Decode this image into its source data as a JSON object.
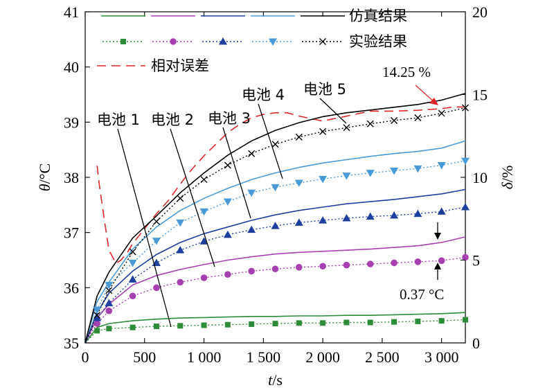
{
  "chart_data": {
    "type": "line",
    "xlabel_var": "t",
    "xlabel_unit": "/s",
    "ylabel_var": "θ",
    "ylabel_unit": "/°C",
    "y2label_var": "δ",
    "y2label_unit": "/%",
    "xlim": [
      0,
      3200
    ],
    "ylim": [
      35,
      41
    ],
    "y2lim": [
      0,
      20
    ],
    "x_ticks": [
      0,
      500,
      1000,
      1500,
      2000,
      2500,
      3000
    ],
    "x_tick_labels": [
      "0",
      "500",
      "1 000",
      "1 500",
      "2 000",
      "2 500",
      "3 000"
    ],
    "y_ticks": [
      35,
      36,
      37,
      38,
      39,
      40,
      41
    ],
    "y_tick_labels": [
      "35",
      "36",
      "37",
      "38",
      "39",
      "40",
      "41"
    ],
    "y2_ticks": [
      0,
      5,
      10,
      15,
      20
    ],
    "y2_tick_labels": [
      "0",
      "5",
      "10",
      "15",
      "20"
    ],
    "grid": false,
    "legend": {
      "position": "top",
      "sim_label": "仿真结果",
      "exp_label": "实验结果",
      "err_label": "相对误差"
    },
    "colors": [
      "#2e8b3a",
      "#a63fb0",
      "#1f3f9e",
      "#4b9ad8",
      "#000000"
    ],
    "error_color": "#e0262b",
    "series": [
      {
        "name": "电池 1",
        "sim": {
          "x": [
            0,
            100,
            200,
            400,
            600,
            800,
            1000,
            1200,
            1400,
            1600,
            1800,
            2000,
            2200,
            2400,
            2600,
            2800,
            3000,
            3200
          ],
          "y": [
            35.0,
            35.28,
            35.35,
            35.4,
            35.43,
            35.45,
            35.46,
            35.47,
            35.48,
            35.48,
            35.49,
            35.49,
            35.5,
            35.5,
            35.51,
            35.52,
            35.53,
            35.55
          ]
        },
        "exp": {
          "x": [
            0,
            100,
            200,
            400,
            600,
            800,
            1000,
            1200,
            1400,
            1600,
            1800,
            2000,
            2200,
            2400,
            2600,
            2800,
            3000,
            3200
          ],
          "y": [
            35.0,
            35.22,
            35.26,
            35.28,
            35.3,
            35.31,
            35.32,
            35.33,
            35.34,
            35.35,
            35.36,
            35.36,
            35.37,
            35.37,
            35.38,
            35.39,
            35.4,
            35.42
          ]
        }
      },
      {
        "name": "电池 2",
        "sim": {
          "x": [
            0,
            100,
            200,
            400,
            600,
            800,
            1000,
            1200,
            1400,
            1600,
            1800,
            2000,
            2200,
            2400,
            2600,
            2800,
            3000,
            3200
          ],
          "y": [
            35.0,
            35.45,
            35.7,
            36.05,
            36.22,
            36.33,
            36.42,
            36.5,
            36.56,
            36.61,
            36.64,
            36.66,
            36.68,
            36.7,
            36.73,
            36.76,
            36.82,
            36.92
          ]
        },
        "exp": {
          "x": [
            0,
            100,
            200,
            400,
            600,
            800,
            1000,
            1200,
            1400,
            1600,
            1800,
            2000,
            2200,
            2400,
            2600,
            2800,
            3000,
            3200
          ],
          "y": [
            35.0,
            35.35,
            35.58,
            35.85,
            36.0,
            36.1,
            36.18,
            36.24,
            36.3,
            36.34,
            36.37,
            36.39,
            36.41,
            36.43,
            36.45,
            36.47,
            36.49,
            36.55
          ]
        }
      },
      {
        "name": "电池 3",
        "sim": {
          "x": [
            0,
            100,
            200,
            400,
            600,
            800,
            1000,
            1200,
            1400,
            1600,
            1800,
            2000,
            2200,
            2400,
            2600,
            2800,
            3000,
            3200
          ],
          "y": [
            35.0,
            35.55,
            35.9,
            36.3,
            36.6,
            36.82,
            36.98,
            37.1,
            37.22,
            37.32,
            37.4,
            37.46,
            37.52,
            37.56,
            37.6,
            37.65,
            37.7,
            37.78
          ]
        },
        "exp": {
          "x": [
            0,
            100,
            200,
            400,
            600,
            800,
            1000,
            1200,
            1400,
            1600,
            1800,
            2000,
            2200,
            2400,
            2600,
            2800,
            3000,
            3200
          ],
          "y": [
            35.0,
            35.45,
            35.72,
            36.15,
            36.45,
            36.68,
            36.84,
            36.96,
            37.05,
            37.12,
            37.18,
            37.22,
            37.26,
            37.29,
            37.31,
            37.34,
            37.38,
            37.46
          ]
        }
      },
      {
        "name": "电池 4",
        "sim": {
          "x": [
            0,
            100,
            200,
            400,
            600,
            800,
            1000,
            1200,
            1400,
            1600,
            1800,
            2000,
            2200,
            2400,
            2600,
            2800,
            3000,
            3200
          ],
          "y": [
            35.0,
            35.75,
            36.1,
            36.7,
            37.1,
            37.4,
            37.62,
            37.8,
            37.96,
            38.08,
            38.18,
            38.26,
            38.32,
            38.38,
            38.43,
            38.47,
            38.53,
            38.66
          ]
        },
        "exp": {
          "x": [
            0,
            100,
            200,
            400,
            600,
            800,
            1000,
            1200,
            1400,
            1600,
            1800,
            2000,
            2200,
            2400,
            2600,
            2800,
            3000,
            3200
          ],
          "y": [
            35.0,
            35.6,
            36.05,
            36.45,
            36.85,
            37.18,
            37.38,
            37.56,
            37.72,
            37.82,
            37.9,
            37.97,
            38.03,
            38.08,
            38.12,
            38.16,
            38.22,
            38.3
          ]
        }
      },
      {
        "name": "电池 5",
        "sim": {
          "x": [
            0,
            100,
            200,
            400,
            600,
            800,
            1000,
            1200,
            1400,
            1600,
            1800,
            2000,
            2200,
            2400,
            2600,
            2800,
            3000,
            3200
          ],
          "y": [
            35.0,
            35.85,
            36.28,
            36.9,
            37.3,
            37.72,
            38.08,
            38.4,
            38.66,
            38.85,
            38.99,
            39.1,
            39.17,
            39.22,
            39.27,
            39.32,
            39.4,
            39.52
          ]
        },
        "exp": {
          "x": [
            0,
            100,
            200,
            400,
            600,
            800,
            1000,
            1200,
            1400,
            1600,
            1800,
            2000,
            2200,
            2400,
            2600,
            2800,
            3000,
            3200
          ],
          "y": [
            35.0,
            35.5,
            35.95,
            36.65,
            37.2,
            37.62,
            37.96,
            38.22,
            38.43,
            38.6,
            38.73,
            38.83,
            38.9,
            38.97,
            39.03,
            39.08,
            39.16,
            39.26
          ]
        }
      }
    ],
    "error_series": {
      "name": "相对误差",
      "x": [
        100,
        120,
        160,
        200,
        260,
        300,
        350,
        400,
        500,
        600,
        700,
        800,
        900,
        1000,
        1100,
        1200,
        1300,
        1400,
        1500,
        1600,
        1700,
        1800,
        2000,
        2200,
        2400,
        2600,
        2800,
        3000,
        3100,
        3200
      ],
      "y": [
        10.7,
        9.5,
        7.5,
        5.6,
        4.8,
        5.0,
        5.4,
        6.0,
        6.9,
        7.8,
        8.6,
        9.6,
        10.5,
        11.3,
        12.0,
        12.7,
        13.2,
        13.6,
        13.8,
        13.9,
        13.9,
        13.7,
        13.4,
        13.7,
        14.0,
        14.0,
        14.05,
        14.15,
        14.25,
        14.25
      ]
    },
    "annotations": {
      "max_error": "14.25 %",
      "delta_temp": "0.37 °C",
      "cell_labels": [
        "电池 1",
        "电池 2",
        "电池 3",
        "电池 4",
        "电池 5"
      ]
    }
  }
}
